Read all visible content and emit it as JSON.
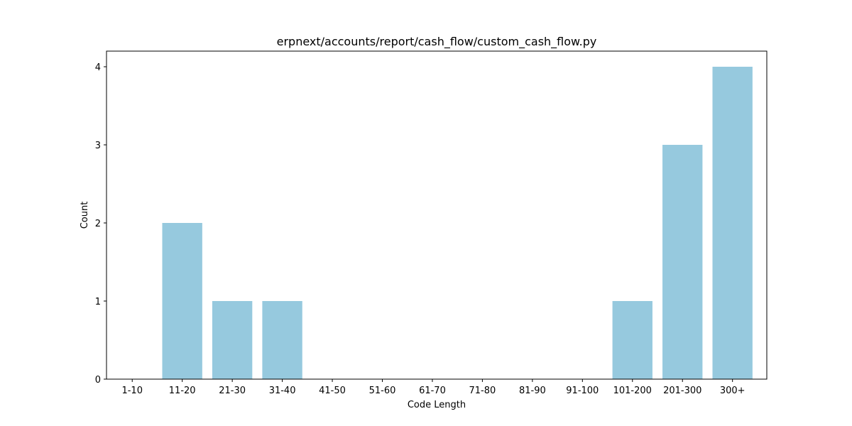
{
  "chart_data": {
    "type": "bar",
    "title": "erpnext/accounts/report/cash_flow/custom_cash_flow.py",
    "xlabel": "Code Length",
    "ylabel": "Count",
    "categories": [
      "1-10",
      "11-20",
      "21-30",
      "31-40",
      "41-50",
      "51-60",
      "61-70",
      "71-80",
      "81-90",
      "91-100",
      "101-200",
      "201-300",
      "300+"
    ],
    "values": [
      0,
      2,
      1,
      1,
      0,
      0,
      0,
      0,
      0,
      0,
      1,
      3,
      4
    ],
    "ylim": [
      0,
      4.2
    ],
    "yticks": [
      0,
      1,
      2,
      3,
      4
    ],
    "grid": false,
    "bar_color": "#96c9de",
    "axis_color": "#000000"
  }
}
